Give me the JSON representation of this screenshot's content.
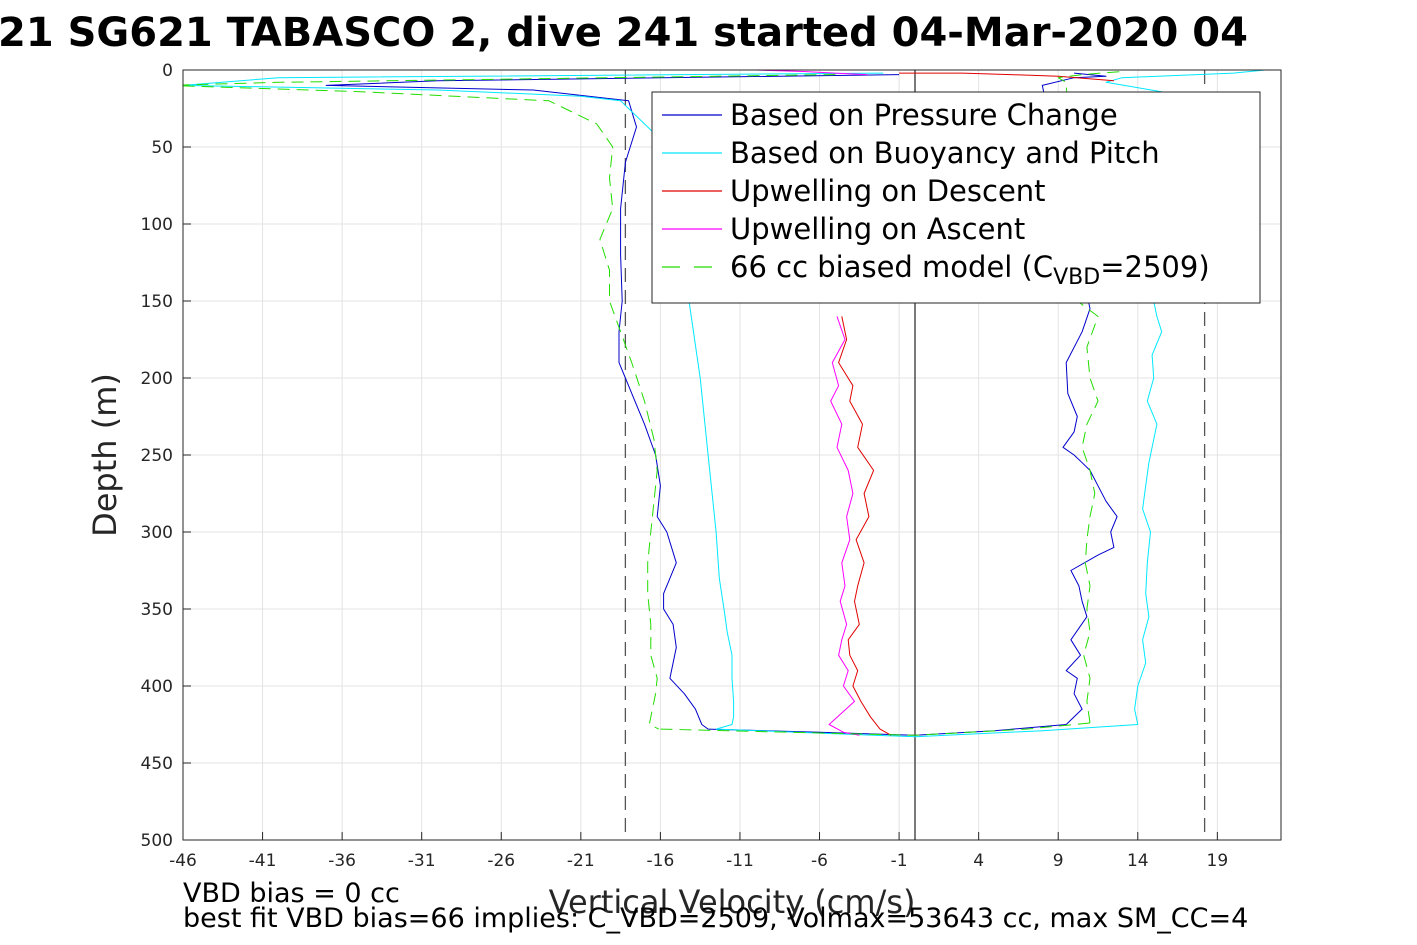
{
  "chart_data": {
    "type": "line",
    "title": "21 SG621 TABASCO 2, dive 241 started 04-Mar-2020 04",
    "xlabel": "Vertical Velocity (cm/s)",
    "ylabel": "Depth (m)",
    "xlim": [
      -46,
      23
    ],
    "ylim": [
      0,
      500
    ],
    "y_reversed": true,
    "grid": true,
    "x_ticks": [
      -46,
      -41,
      -36,
      -31,
      -26,
      -21,
      -16,
      -11,
      -6,
      -1,
      4,
      9,
      14,
      19
    ],
    "y_ticks": [
      0,
      50,
      100,
      150,
      200,
      250,
      300,
      350,
      400,
      450,
      500
    ],
    "legend_position": "top-right",
    "reference_lines": [
      {
        "x": -18.2,
        "style": "dashed",
        "color": "#555555"
      },
      {
        "x": 0,
        "style": "solid",
        "color": "#333333"
      },
      {
        "x": 18.2,
        "style": "dashed",
        "color": "#555555"
      }
    ],
    "series": [
      {
        "name": "Based on Pressure Change",
        "color": "#0000cc",
        "dash": "",
        "profiles": [
          {
            "x": [
              -1,
              -30,
              -37,
              -24,
              -18,
              -17.5,
              -18.2,
              -18.5,
              -18.5,
              -18.4,
              -18.6,
              -18.6,
              -18.2,
              -17.6,
              -17,
              -16.3,
              -16,
              -16.2,
              -15.6,
              -15,
              -15.8,
              -15.8,
              -15.2,
              -15,
              -15.2,
              -15.4,
              -14.5,
              -13.8,
              -13.4,
              -13
            ],
            "y": [
              3,
              7,
              10,
              13,
              20,
              37,
              60,
              90,
              120,
              150,
              170,
              190,
              200,
              215,
              230,
              250,
              270,
              290,
              300,
              320,
              340,
              350,
              360,
              375,
              385,
              395,
              405,
              415,
              425,
              428
            ]
          },
          {
            "x": [
              -13,
              -6,
              0,
              5,
              9.5
            ],
            "y": [
              428,
              430,
              432,
              429,
              425
            ]
          },
          {
            "x": [
              9.5,
              10.5,
              10,
              10.2,
              9.5,
              10.4,
              9.8,
              10.8,
              10.5,
              10.3,
              9.8,
              11.5,
              12.5,
              12.3,
              12.7,
              12,
              11.5,
              11,
              10.5,
              10,
              9.3,
              10,
              10.2,
              9.6,
              9.5,
              10.5,
              11,
              8,
              10,
              12,
              10
            ],
            "y": [
              425,
              415,
              405,
              395,
              390,
              380,
              370,
              355,
              345,
              335,
              325,
              315,
              310,
              300,
              290,
              280,
              270,
              260,
              255,
              250,
              245,
              235,
              225,
              210,
              190,
              170,
              155,
              10,
              5,
              4,
              2
            ]
          }
        ]
      },
      {
        "name": "Based on Buoyancy and Pitch",
        "color": "#00e8ff",
        "dash": "",
        "profiles": [
          {
            "x": [
              -2,
              -40,
              -46,
              -30,
              -21,
              -18.5,
              -18,
              -15.5,
              -14.2,
              -13.5,
              -13,
              -12.7,
              -12.5,
              -12.3,
              -12,
              -11.8,
              -11.5,
              -11.5,
              -11.4,
              -11.4,
              -11.5,
              -12.5
            ],
            "y": [
              2,
              5,
              10,
              13,
              17,
              20,
              25,
              50,
              150,
              200,
              250,
              280,
              300,
              330,
              350,
              365,
              380,
              395,
              410,
              420,
              425,
              428
            ]
          },
          {
            "x": [
              -12.5,
              -5,
              0,
              8,
              14
            ],
            "y": [
              428,
              431,
              433,
              429,
              425
            ]
          },
          {
            "x": [
              14,
              13.8,
              14,
              14.5,
              14.3,
              14.7,
              14.5,
              14.6,
              14.8,
              14.3,
              14.5,
              14.7,
              15.2,
              14.6,
              15,
              14.9,
              15.5,
              15.2,
              15,
              16,
              12,
              13,
              20,
              22
            ],
            "y": [
              425,
              415,
              400,
              385,
              370,
              355,
              340,
              320,
              300,
              285,
              270,
              255,
              230,
              215,
              200,
              185,
              170,
              160,
              150,
              15,
              8,
              5,
              2,
              0
            ]
          }
        ]
      },
      {
        "name": "Upwelling on Descent",
        "color": "#e00000",
        "dash": "",
        "profiles": [
          {
            "x": [
              -4.6,
              -4.3,
              -4.8,
              -3.9,
              -4.1,
              -3.3,
              -3.6,
              -2.6,
              -3.2,
              -2.9,
              -3.7,
              -3.2,
              -3.6,
              -3.8,
              -3.5,
              -4.2,
              -4.1,
              -3.6,
              -3.9,
              -3.4,
              -2.8,
              -2.2,
              -1.5
            ],
            "y": [
              160,
              175,
              190,
              205,
              215,
              230,
              245,
              260,
              275,
              290,
              305,
              320,
              335,
              345,
              360,
              370,
              380,
              390,
              400,
              410,
              420,
              428,
              432
            ]
          },
          {
            "x": [
              -1,
              3,
              6,
              9,
              12.5
            ],
            "y": [
              2,
              2,
              3,
              4,
              7
            ]
          }
        ]
      },
      {
        "name": "Upwelling on Ascent",
        "color": "#ff00ff",
        "dash": "",
        "profiles": [
          {
            "x": [
              -4.9,
              -4.4,
              -5.2,
              -4.8,
              -5.3,
              -4.6,
              -4.9,
              -4.2,
              -3.9,
              -4.3,
              -4.1,
              -4.6,
              -4.4,
              -4.7,
              -4.3,
              -4.6,
              -4.8,
              -4.2,
              -4.5,
              -3.8,
              -5.4,
              -4.5,
              -3.5
            ],
            "y": [
              160,
              175,
              190,
              205,
              215,
              230,
              245,
              260,
              275,
              290,
              305,
              320,
              335,
              345,
              360,
              370,
              380,
              390,
              400,
              410,
              425,
              430,
              432
            ]
          },
          {
            "x": [
              -13,
              -10,
              -7,
              -5,
              -3
            ],
            "y": [
              0,
              0,
              1,
              2,
              3
            ]
          }
        ]
      },
      {
        "name": "66 cc biased model (C",
        "legend_subscript": "VBD",
        "legend_suffix": "=2509)",
        "color": "#22dd00",
        "dash": "12 7",
        "profiles": [
          {
            "x": [
              -5,
              -40,
              -47,
              -35,
              -23,
              -20,
              -19,
              -19.2,
              -19,
              -19.8,
              -19.2,
              -19.2,
              -18.5,
              -17.8,
              -17,
              -16.4,
              -16.2,
              -16.4,
              -16.6,
              -16.8,
              -16.8,
              -16.6,
              -16.6,
              -16.2,
              -16.3,
              -16.5,
              -16.7,
              -16.1
            ],
            "y": [
              3,
              8,
              10,
              14,
              20,
              35,
              50,
              70,
              90,
              110,
              130,
              150,
              170,
              190,
              215,
              240,
              260,
              280,
              300,
              320,
              340,
              360,
              380,
              395,
              405,
              415,
              425,
              428
            ]
          },
          {
            "x": [
              -16,
              -8,
              0,
              7,
              11
            ],
            "y": [
              428,
              430,
              432,
              428,
              424
            ]
          },
          {
            "x": [
              11,
              10.8,
              11,
              10.6,
              11,
              10.8,
              11,
              10.7,
              10.8,
              11,
              11.3,
              11,
              10.5,
              10.8,
              11.5,
              11,
              10.8,
              11.5,
              10.2,
              9.5,
              9,
              10.5,
              13
            ],
            "y": [
              424,
              410,
              395,
              380,
              365,
              350,
              335,
              320,
              305,
              290,
              275,
              260,
              245,
              230,
              215,
              200,
              180,
              160,
              150,
              8,
              5,
              3,
              1
            ]
          }
        ]
      }
    ]
  },
  "notes": {
    "line1": "VBD bias = 0 cc",
    "line2": "best fit VBD bias=66 implies: C_VBD=2509, Volmax=53643 cc, max SM_CC=4"
  }
}
